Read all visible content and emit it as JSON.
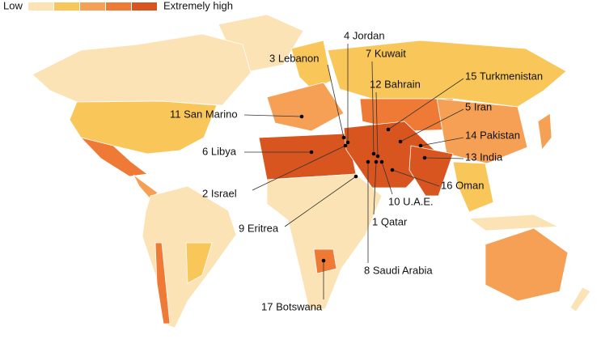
{
  "legend": {
    "low": "Low",
    "high": "Extremely high",
    "colors": [
      "#fbe3b5",
      "#f9c659",
      "#f5a055",
      "#ef7a35",
      "#d9551f"
    ]
  },
  "labels": [
    "4 Jordan",
    "3 Lebanon",
    "7 Kuwait",
    "12 Bahrain",
    "15 Turkmenistan",
    "5 Iran",
    "14 Pakistan",
    "13 India",
    "16 Oman",
    "10 U.A.E.",
    "1 Qatar",
    "8 Saudi Arabia",
    "2 Israel",
    "6 Libya",
    "11 San Marino",
    "9 Eritrea",
    "17 Botswana"
  ]
}
